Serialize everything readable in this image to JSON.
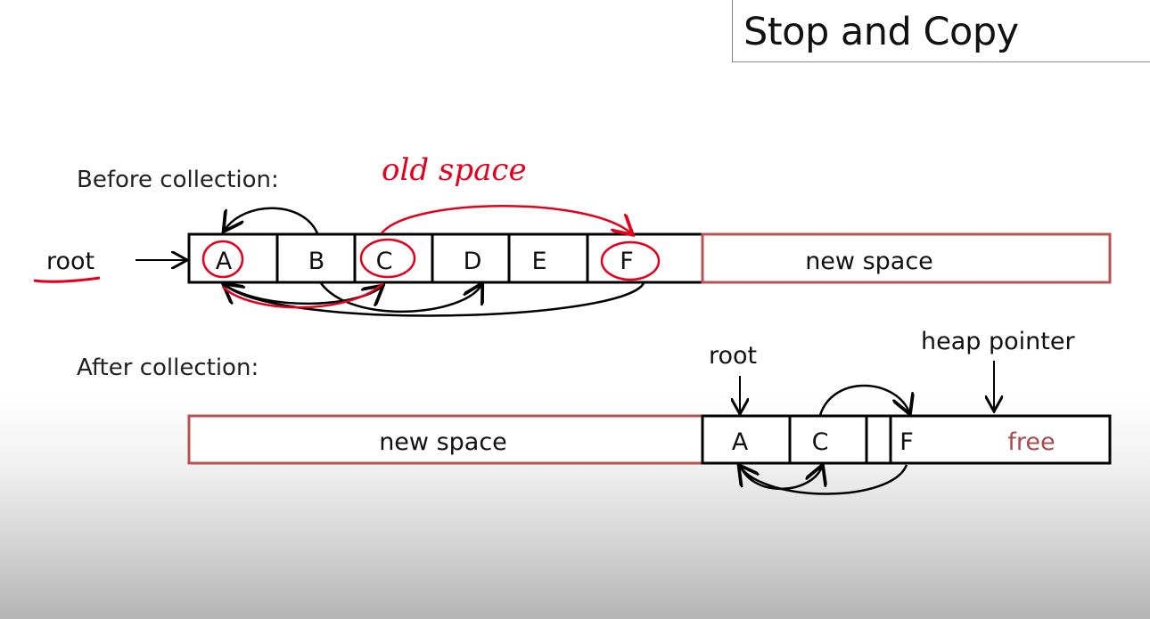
{
  "title": "Stop and Copy",
  "before": {
    "heading": "Before collection:",
    "root_label": "root",
    "cells": [
      "A",
      "B",
      "C",
      "D",
      "E",
      "F"
    ],
    "new_space_label": "new space",
    "handwritten_note": "old space"
  },
  "after": {
    "heading": "After collection:",
    "new_space_label": "new space",
    "cells": [
      "A",
      "C",
      "F"
    ],
    "free_label": "free",
    "root_label": "root",
    "heap_pointer_label": "heap pointer"
  },
  "colors": {
    "box_border": "#000000",
    "space_border": "#b85450",
    "annotation_red": "#e4001c",
    "free_text": "#a84a4a"
  }
}
